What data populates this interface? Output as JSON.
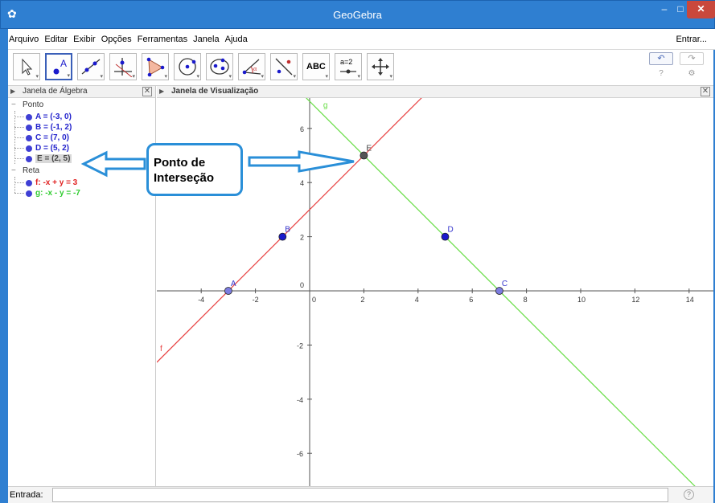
{
  "window": {
    "title": "GeoGebra",
    "min": "–",
    "max": "□",
    "close": "✕"
  },
  "menu": {
    "items": [
      "Arquivo",
      "Editar",
      "Exibir",
      "Opções",
      "Ferramentas",
      "Janela",
      "Ajuda"
    ],
    "login": "Entrar..."
  },
  "toolbar": {
    "tools": [
      "move-tool",
      "point-tool",
      "line-tool",
      "perpendicular-tool",
      "polygon-tool",
      "circle-tool",
      "ellipse-tool",
      "angle-tool",
      "reflect-tool",
      "text-tool",
      "slider-tool",
      "move-view-tool"
    ],
    "text_label": "ABC",
    "slider_label": "a=2",
    "undo": "↶",
    "redo": "↷",
    "help": "?",
    "settings": "⚙"
  },
  "algebra": {
    "title": "Janela de Álgebra",
    "groups": [
      {
        "name": "Ponto",
        "items": [
          {
            "text": "A = (-3, 0)",
            "color": "#2222cc"
          },
          {
            "text": "B = (-1, 2)",
            "color": "#2222cc"
          },
          {
            "text": "C = (7, 0)",
            "color": "#2222cc"
          },
          {
            "text": "D = (5, 2)",
            "color": "#2222cc"
          },
          {
            "text": "E = (2, 5)",
            "color": "#444444"
          }
        ]
      },
      {
        "name": "Reta",
        "items": [
          {
            "text": "f: -x + y = 3",
            "color": "#e02020"
          },
          {
            "text": "g: -x - y = -7",
            "color": "#2ecc2e"
          }
        ]
      }
    ]
  },
  "graphics": {
    "title": "Janela de Visualização",
    "x_ticks": [
      "-4",
      "-2",
      "0",
      "2",
      "4",
      "6",
      "8",
      "10",
      "12",
      "14"
    ],
    "y_ticks": [
      "6",
      "4",
      "2",
      "0",
      "-2",
      "-4",
      "-6"
    ],
    "points": [
      {
        "label": "A",
        "x": -3,
        "y": 0,
        "color": "#7c7ce0"
      },
      {
        "label": "B",
        "x": -1,
        "y": 2,
        "color": "#1a1acc"
      },
      {
        "label": "C",
        "x": 7,
        "y": 0,
        "color": "#7c7ce0"
      },
      {
        "label": "D",
        "x": 5,
        "y": 2,
        "color": "#1a1acc"
      },
      {
        "label": "E",
        "x": 2,
        "y": 5,
        "color": "#555555"
      }
    ],
    "lines": [
      {
        "label": "f",
        "color": "#e84040"
      },
      {
        "label": "g",
        "color": "#66dd44"
      }
    ]
  },
  "annotation": {
    "line1": "Ponto de",
    "line2": "Interseção",
    "color": "#2a8fd8"
  },
  "input": {
    "label": "Entrada:",
    "value": "",
    "help": "?"
  }
}
